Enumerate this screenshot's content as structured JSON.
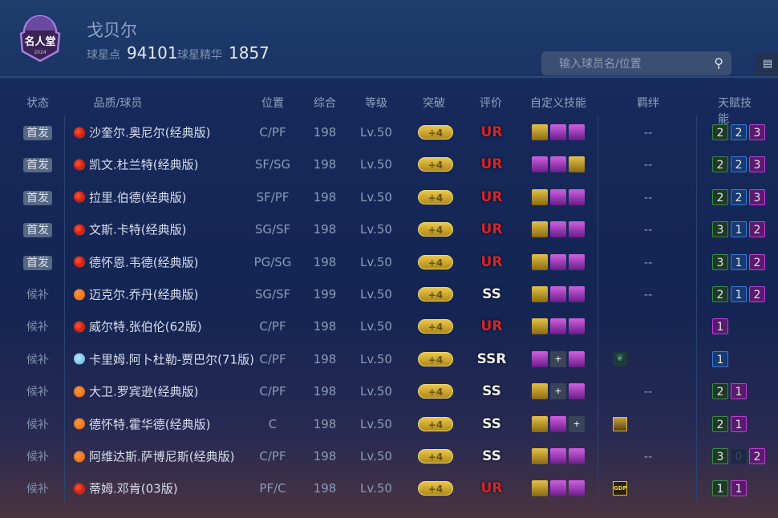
{
  "header": {
    "logo_text": "名人堂",
    "logo_year": "2024",
    "player_name": "戈贝尔",
    "points_label": "球星点",
    "points": "94101",
    "essence_label": "球星精华",
    "essence": "1857",
    "search_placeholder": "输入球员名/位置"
  },
  "columns": [
    "状态",
    "品质/球员",
    "位置",
    "综合",
    "等级",
    "突破",
    "评价",
    "自定义技能",
    "羁绊",
    "天赋技能"
  ],
  "colors": {
    "talent_green": "#1f4a2c",
    "talent_blue": "#1c3f7a",
    "talent_purple": "#6a1c7a",
    "ur": "#d8242a",
    "quality_red": "#d8281c",
    "quality_orange": "#e06a1a",
    "quality_blue": "#7ac4e8"
  },
  "rows": [
    {
      "status": "首发",
      "starter": true,
      "quality": "red",
      "name": "沙奎尔.奥尼尔(经典版)",
      "pos": "C/PF",
      "ovr": "198",
      "lv": "Lv.50",
      "brk": "+4",
      "rating": "UR",
      "skills": [
        "gold",
        "purple",
        "purple"
      ],
      "bond": "--",
      "talent": [
        [
          "2",
          "g"
        ],
        [
          "2",
          "b"
        ],
        [
          "3",
          "p"
        ]
      ]
    },
    {
      "status": "首发",
      "starter": true,
      "quality": "red",
      "name": "凯文.杜兰特(经典版)",
      "pos": "SF/SG",
      "ovr": "198",
      "lv": "Lv.50",
      "brk": "+4",
      "rating": "UR",
      "skills": [
        "purple",
        "purple",
        "gold"
      ],
      "bond": "--",
      "talent": [
        [
          "2",
          "g"
        ],
        [
          "2",
          "b"
        ],
        [
          "3",
          "p"
        ]
      ]
    },
    {
      "status": "首发",
      "starter": true,
      "quality": "red",
      "name": "拉里.伯德(经典版)",
      "pos": "SF/PF",
      "ovr": "198",
      "lv": "Lv.50",
      "brk": "+4",
      "rating": "UR",
      "skills": [
        "gold",
        "purple",
        "purple"
      ],
      "bond": "--",
      "talent": [
        [
          "2",
          "g"
        ],
        [
          "2",
          "b"
        ],
        [
          "3",
          "p"
        ]
      ]
    },
    {
      "status": "首发",
      "starter": true,
      "quality": "red",
      "name": "文斯.卡特(经典版)",
      "pos": "SG/SF",
      "ovr": "198",
      "lv": "Lv.50",
      "brk": "+4",
      "rating": "UR",
      "skills": [
        "gold",
        "purple",
        "purple"
      ],
      "bond": "--",
      "talent": [
        [
          "3",
          "g"
        ],
        [
          "1",
          "b"
        ],
        [
          "2",
          "p"
        ]
      ]
    },
    {
      "status": "首发",
      "starter": true,
      "quality": "red",
      "name": "德怀恩.韦德(经典版)",
      "pos": "PG/SG",
      "ovr": "198",
      "lv": "Lv.50",
      "brk": "+4",
      "rating": "UR",
      "skills": [
        "gold",
        "purple",
        "purple"
      ],
      "bond": "--",
      "talent": [
        [
          "3",
          "g"
        ],
        [
          "1",
          "b"
        ],
        [
          "2",
          "p"
        ]
      ]
    },
    {
      "status": "候补",
      "starter": false,
      "quality": "orange",
      "name": "迈克尔.乔丹(经典版)",
      "pos": "SG/SF",
      "ovr": "199",
      "lv": "Lv.50",
      "brk": "+4",
      "rating": "SS",
      "skills": [
        "gold",
        "purple",
        "purple"
      ],
      "bond": "--",
      "talent": [
        [
          "2",
          "g"
        ],
        [
          "1",
          "b"
        ],
        [
          "2",
          "p"
        ]
      ]
    },
    {
      "status": "候补",
      "starter": false,
      "quality": "red",
      "name": "威尔特.张伯伦(62版)",
      "pos": "C/PF",
      "ovr": "198",
      "lv": "Lv.50",
      "brk": "+4",
      "rating": "UR",
      "skills": [
        "gold",
        "purple",
        "purple"
      ],
      "bond": "",
      "talent": [
        [
          "1",
          "p"
        ]
      ]
    },
    {
      "status": "候补",
      "starter": false,
      "quality": "blue",
      "name": "卡里姆.阿卜杜勒-贾巴尔(71版)",
      "pos": "C/PF",
      "ovr": "198",
      "lv": "Lv.50",
      "brk": "+4",
      "rating": "SSR",
      "skills": [
        "purple",
        "plus",
        "purple"
      ],
      "bond": "icon-tree",
      "talent": [
        [
          "1",
          "b"
        ]
      ]
    },
    {
      "status": "候补",
      "starter": false,
      "quality": "orange",
      "name": "大卫.罗宾逊(经典版)",
      "pos": "C/PF",
      "ovr": "198",
      "lv": "Lv.50",
      "brk": "+4",
      "rating": "SS",
      "skills": [
        "gold",
        "plus",
        "purple"
      ],
      "bond": "--",
      "talent": [
        [
          "2",
          "g"
        ],
        [
          "1",
          "p"
        ]
      ]
    },
    {
      "status": "候补",
      "starter": false,
      "quality": "orange",
      "name": "德怀特.霍华德(经典版)",
      "pos": "C",
      "ovr": "198",
      "lv": "Lv.50",
      "brk": "+4",
      "rating": "SS",
      "skills": [
        "gold",
        "purple",
        "plus"
      ],
      "bond": "icon-gold",
      "talent": [
        [
          "2",
          "g"
        ],
        [
          "1",
          "p"
        ]
      ]
    },
    {
      "status": "候补",
      "starter": false,
      "quality": "orange",
      "name": "阿维达斯.萨博尼斯(经典版)",
      "pos": "C/PF",
      "ovr": "198",
      "lv": "Lv.50",
      "brk": "+4",
      "rating": "SS",
      "skills": [
        "gold",
        "purple",
        "purple"
      ],
      "bond": "--",
      "talent": [
        [
          "3",
          "g"
        ],
        [
          "0",
          "e"
        ],
        [
          "2",
          "p"
        ]
      ]
    },
    {
      "status": "候补",
      "starter": false,
      "quality": "red",
      "name": "蒂姆.邓肯(03版)",
      "pos": "PF/C",
      "ovr": "198",
      "lv": "Lv.50",
      "brk": "+4",
      "rating": "UR",
      "skills": [
        "gold",
        "purple",
        "purple"
      ],
      "bond": "GDP",
      "talent": [
        [
          "1",
          "g"
        ],
        [
          "1",
          "p"
        ]
      ]
    }
  ]
}
